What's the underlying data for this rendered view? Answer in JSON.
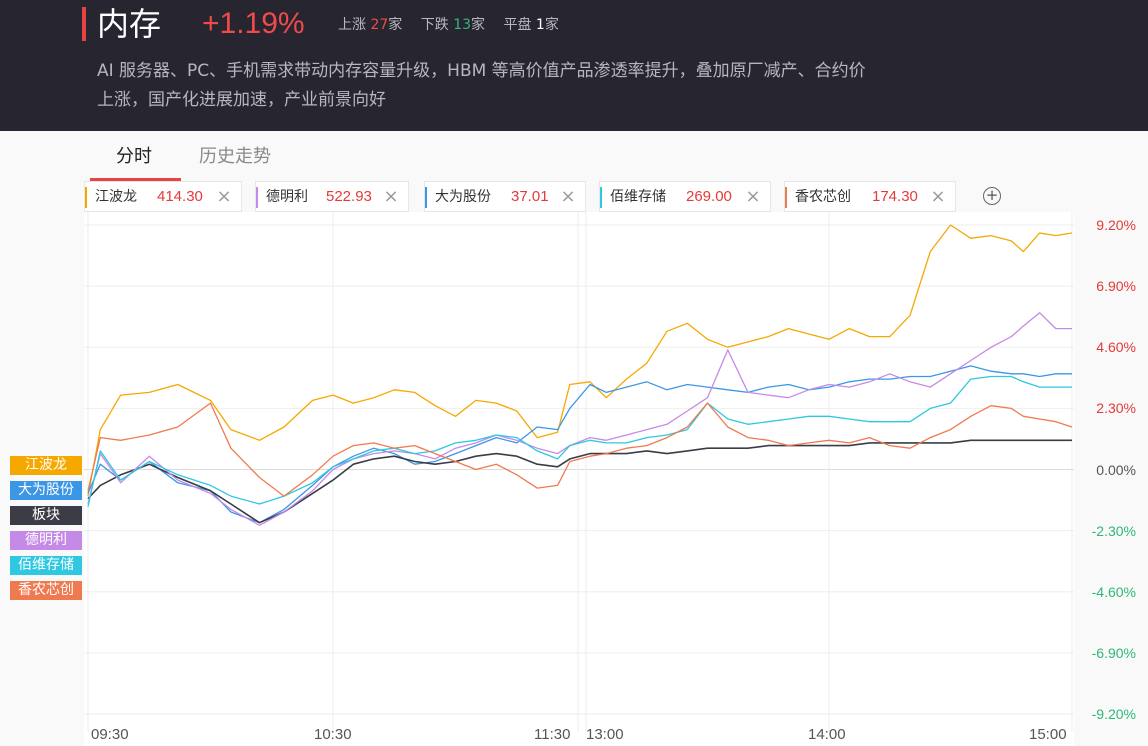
{
  "header": {
    "title": "内存",
    "change": "+1.19%",
    "up_label": "上涨",
    "up_count": "27",
    "down_label": "下跌",
    "down_count": "13",
    "flat_label": "平盘",
    "flat_count": "1",
    "unit": "家",
    "description": "AI 服务器、PC、手机需求带动内存容量升级，HBM 等高价值产品渗透率提升，叠加原厂减产、合约价上涨，国产化进展加速，产业前景向好"
  },
  "tabs": [
    {
      "label": "分时",
      "active": true
    },
    {
      "label": "历史走势",
      "active": false
    }
  ],
  "stock_chips": [
    {
      "name": "江波龙",
      "price": "414.30",
      "color": "#f5a800"
    },
    {
      "name": "德明利",
      "price": "522.93",
      "color": "#c58ae6"
    },
    {
      "name": "大为股份",
      "price": "37.01",
      "color": "#3b97e6"
    },
    {
      "name": "佰维存储",
      "price": "269.00",
      "color": "#2ec8e0"
    },
    {
      "name": "香农芯创",
      "price": "174.30",
      "color": "#f07a50"
    }
  ],
  "icons": {
    "close": "close-icon",
    "add": "plus-circle-icon"
  },
  "chart_data": {
    "type": "line",
    "y_unit": "%",
    "y_ticks": [
      "9.20%",
      "6.90%",
      "4.60%",
      "2.30%",
      "0.00%",
      "-2.30%",
      "-4.60%",
      "-6.90%",
      "-9.20%"
    ],
    "x_ticks": [
      "09:30",
      "10:30",
      "11:30",
      "13:00",
      "14:00",
      "15:00"
    ],
    "ylim": [
      -9.2,
      9.2
    ],
    "x_session_minutes": [
      0,
      240
    ],
    "grid": true,
    "legend_placement": "left",
    "legend_order": [
      "江波龙",
      "大为股份",
      "板块",
      "德明利",
      "佰维存储",
      "香农芯创"
    ],
    "series": [
      {
        "name": "江波龙",
        "color": "#f5a800",
        "x": [
          0,
          3,
          8,
          15,
          22,
          30,
          35,
          42,
          48,
          55,
          60,
          65,
          70,
          75,
          80,
          85,
          90,
          95,
          100,
          105,
          110,
          115,
          118,
          121,
          125,
          130,
          135,
          140,
          145,
          150,
          155,
          160,
          165,
          170,
          175,
          180,
          185,
          190,
          195,
          200,
          205,
          210,
          215,
          220,
          225,
          228,
          232,
          236,
          240
        ],
        "y": [
          -1.0,
          1.5,
          2.8,
          2.9,
          3.2,
          2.6,
          1.5,
          1.1,
          1.6,
          2.6,
          2.8,
          2.5,
          2.7,
          3.0,
          2.9,
          2.4,
          2.0,
          2.6,
          2.5,
          2.2,
          1.2,
          1.4,
          3.2,
          3.3,
          2.7,
          3.4,
          4.0,
          5.2,
          5.5,
          4.9,
          4.6,
          4.8,
          5.0,
          5.3,
          5.1,
          4.9,
          5.3,
          5.0,
          5.0,
          5.8,
          8.2,
          9.2,
          8.7,
          8.8,
          8.6,
          8.2,
          8.9,
          8.8,
          8.9
        ]
      },
      {
        "name": "大为股份",
        "color": "#3b97e6",
        "x": [
          0,
          3,
          8,
          15,
          22,
          30,
          35,
          42,
          48,
          55,
          60,
          65,
          70,
          75,
          80,
          85,
          90,
          95,
          100,
          105,
          110,
          115,
          118,
          121,
          125,
          130,
          135,
          140,
          145,
          150,
          155,
          160,
          165,
          170,
          175,
          180,
          185,
          190,
          195,
          200,
          205,
          210,
          215,
          220,
          225,
          228,
          232,
          236,
          240
        ],
        "y": [
          -0.9,
          0.2,
          -0.4,
          0.3,
          -0.5,
          -0.8,
          -1.6,
          -2.0,
          -1.5,
          -0.6,
          0.1,
          0.5,
          0.8,
          0.6,
          0.2,
          0.3,
          0.6,
          0.9,
          1.2,
          1.0,
          1.6,
          1.5,
          2.3,
          3.2,
          2.9,
          3.1,
          3.3,
          3.0,
          3.2,
          3.1,
          3.0,
          2.9,
          3.1,
          3.2,
          3.0,
          3.1,
          3.3,
          3.4,
          3.4,
          3.5,
          3.5,
          3.7,
          3.9,
          3.7,
          3.6,
          3.6,
          3.5,
          3.6,
          3.6
        ]
      },
      {
        "name": "板块",
        "color": "#3c3c46",
        "x": [
          0,
          3,
          8,
          15,
          22,
          30,
          35,
          42,
          48,
          55,
          60,
          65,
          70,
          75,
          80,
          85,
          90,
          95,
          100,
          105,
          110,
          115,
          118,
          121,
          125,
          130,
          135,
          140,
          145,
          150,
          155,
          160,
          165,
          170,
          175,
          180,
          185,
          190,
          195,
          200,
          205,
          210,
          215,
          220,
          225,
          228,
          232,
          236,
          240
        ],
        "y": [
          -1.1,
          -0.6,
          -0.2,
          0.2,
          -0.3,
          -0.8,
          -1.3,
          -2.0,
          -1.6,
          -0.9,
          -0.4,
          0.2,
          0.4,
          0.5,
          0.3,
          0.2,
          0.3,
          0.5,
          0.6,
          0.5,
          0.2,
          0.1,
          0.4,
          0.6,
          0.6,
          0.6,
          0.7,
          0.6,
          0.7,
          0.8,
          0.8,
          0.8,
          0.9,
          0.9,
          0.9,
          0.9,
          0.9,
          1.0,
          1.0,
          1.0,
          1.0,
          1.0,
          1.1,
          1.1,
          1.1,
          1.1,
          1.1,
          1.1,
          1.1
        ]
      },
      {
        "name": "德明利",
        "color": "#c58ae6",
        "x": [
          0,
          3,
          8,
          15,
          22,
          30,
          35,
          42,
          48,
          55,
          60,
          65,
          70,
          75,
          80,
          85,
          90,
          95,
          100,
          105,
          110,
          115,
          118,
          121,
          125,
          130,
          135,
          140,
          145,
          150,
          155,
          160,
          165,
          170,
          175,
          180,
          185,
          190,
          195,
          200,
          205,
          210,
          215,
          220,
          225,
          228,
          232,
          236,
          240
        ],
        "y": [
          -1.3,
          0.6,
          -0.5,
          0.5,
          -0.4,
          -0.9,
          -1.5,
          -2.1,
          -1.6,
          -0.8,
          0.0,
          0.4,
          0.6,
          0.7,
          0.6,
          0.4,
          0.8,
          1.0,
          1.3,
          1.1,
          0.8,
          0.6,
          0.9,
          1.2,
          1.1,
          1.3,
          1.5,
          1.7,
          2.2,
          2.7,
          4.5,
          2.9,
          2.8,
          2.7,
          3.0,
          3.2,
          3.1,
          3.3,
          3.6,
          3.3,
          3.1,
          3.6,
          4.1,
          4.6,
          5.0,
          5.4,
          5.9,
          5.3,
          5.3
        ]
      },
      {
        "name": "佰维存储",
        "color": "#2ec8e0",
        "x": [
          0,
          3,
          8,
          15,
          22,
          30,
          35,
          42,
          48,
          55,
          60,
          65,
          70,
          75,
          80,
          85,
          90,
          95,
          100,
          105,
          110,
          115,
          118,
          121,
          125,
          130,
          135,
          140,
          145,
          150,
          155,
          160,
          165,
          170,
          175,
          180,
          185,
          190,
          195,
          200,
          205,
          210,
          215,
          220,
          225,
          228,
          232,
          236,
          240
        ],
        "y": [
          -1.4,
          0.7,
          -0.4,
          0.3,
          -0.2,
          -0.6,
          -1.0,
          -1.3,
          -1.0,
          -0.5,
          0.1,
          0.4,
          0.7,
          0.8,
          0.6,
          0.7,
          1.0,
          1.1,
          1.3,
          1.2,
          0.7,
          0.4,
          0.9,
          1.1,
          1.0,
          1.0,
          1.2,
          1.3,
          1.5,
          2.5,
          1.9,
          1.7,
          1.8,
          1.9,
          2.0,
          2.0,
          1.9,
          1.8,
          1.8,
          1.8,
          2.3,
          2.5,
          3.4,
          3.5,
          3.5,
          3.3,
          3.1,
          3.1,
          3.1
        ]
      },
      {
        "name": "香农芯创",
        "color": "#f07a50",
        "x": [
          0,
          3,
          8,
          15,
          22,
          30,
          35,
          42,
          48,
          55,
          60,
          65,
          70,
          75,
          80,
          85,
          90,
          95,
          100,
          105,
          110,
          115,
          118,
          121,
          125,
          130,
          135,
          140,
          145,
          150,
          155,
          160,
          165,
          170,
          175,
          180,
          185,
          190,
          195,
          200,
          205,
          210,
          215,
          220,
          225,
          228,
          232,
          236,
          240
        ],
        "y": [
          -0.8,
          1.2,
          1.1,
          1.3,
          1.6,
          2.5,
          0.8,
          -0.3,
          -1.0,
          -0.2,
          0.5,
          0.9,
          1.0,
          0.8,
          0.9,
          0.6,
          0.3,
          0.0,
          0.2,
          -0.2,
          -0.7,
          -0.6,
          0.3,
          0.5,
          0.6,
          0.8,
          0.9,
          1.2,
          1.6,
          2.5,
          1.6,
          1.2,
          1.1,
          0.9,
          1.0,
          1.1,
          1.0,
          1.2,
          0.9,
          0.8,
          1.2,
          1.5,
          2.0,
          2.4,
          2.3,
          2.0,
          1.9,
          1.8,
          1.6
        ]
      }
    ]
  }
}
